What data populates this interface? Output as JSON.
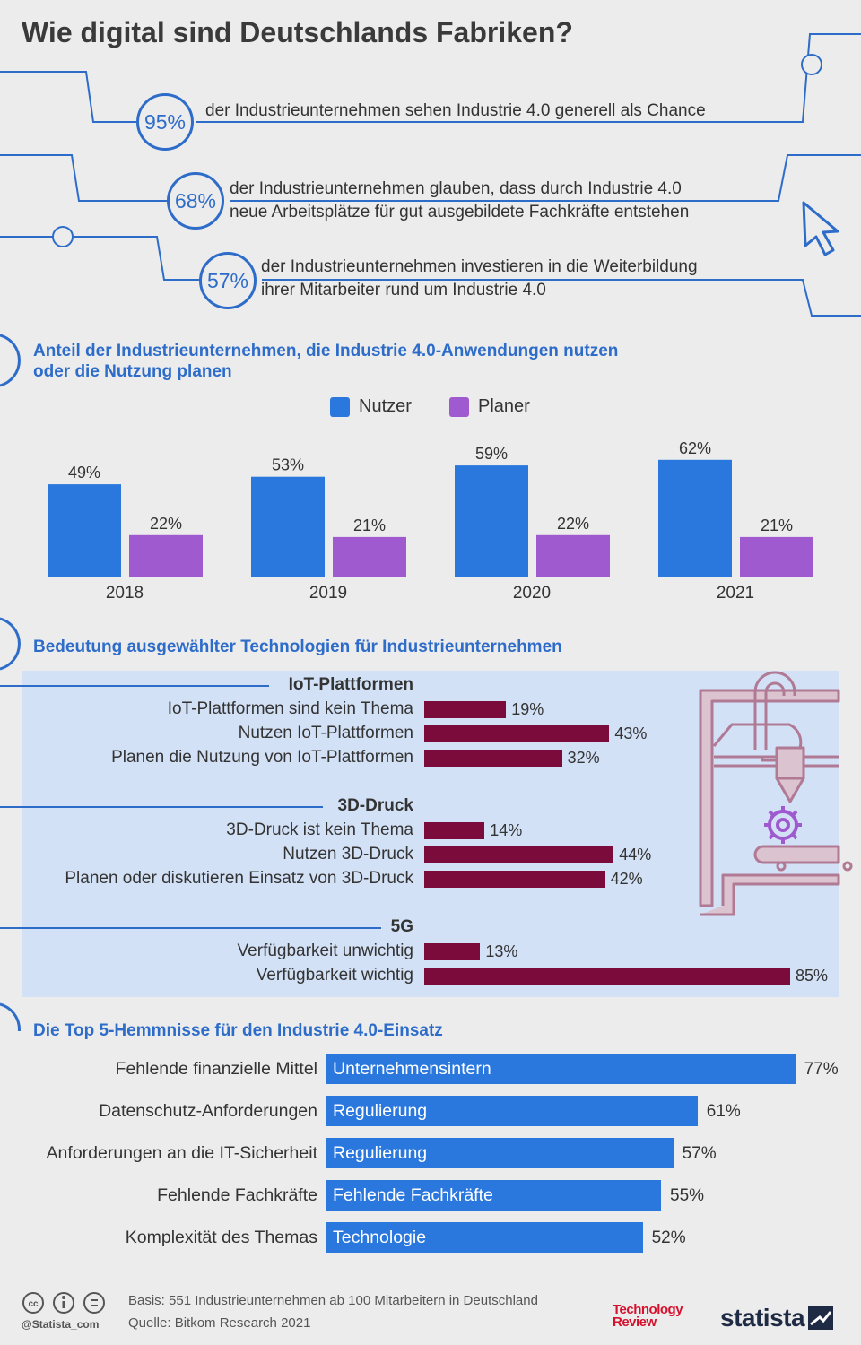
{
  "title": "Wie digital sind Deutschlands Fabriken?",
  "stats": [
    {
      "value": "95%",
      "lines": [
        "der Industrieunternehmen sehen Industrie 4.0 generell als Chance"
      ]
    },
    {
      "value": "68%",
      "lines": [
        "der Industrieunternehmen glauben, dass durch Industrie 4.0",
        "neue Arbeitsplätze für gut ausgebildete Fachkräfte entstehen"
      ]
    },
    {
      "value": "57%",
      "lines": [
        "der Industrieunternehmen investieren in die Weiterbildung",
        "ihrer Mitarbeiter rund um Industrie 4.0"
      ]
    }
  ],
  "colors": {
    "blue": "#2a78de",
    "purple": "#a05ad0",
    "maroon": "#7b0b3a",
    "accent": "#2e6cc9",
    "panel": "#d3e1f6",
    "background": "#ececec"
  },
  "chart_data": [
    {
      "type": "bar",
      "title": "Anteil der Industrieunternehmen, die Industrie 4.0-Anwendungen nutzen oder die Nutzung planen",
      "categories": [
        "2018",
        "2019",
        "2020",
        "2021"
      ],
      "series": [
        {
          "name": "Nutzer",
          "values": [
            49,
            53,
            59,
            62
          ],
          "labels": [
            "49%",
            "53%",
            "59%",
            "62%"
          ]
        },
        {
          "name": "Planer",
          "values": [
            22,
            21,
            22,
            21
          ],
          "labels": [
            "22%",
            "21%",
            "22%",
            "21%"
          ]
        }
      ],
      "unit": "%"
    },
    {
      "type": "bar",
      "orientation": "horizontal",
      "title": "Bedeutung ausgewählter Technologien für Industrieunternehmen",
      "groups": [
        {
          "name": "IoT-Plattformen",
          "items": [
            {
              "label": "IoT-Plattformen sind kein Thema",
              "value": 19,
              "text": "19%"
            },
            {
              "label": "Nutzen IoT-Plattformen",
              "value": 43,
              "text": "43%"
            },
            {
              "label": "Planen die Nutzung von IoT-Plattformen",
              "value": 32,
              "text": "32%"
            }
          ]
        },
        {
          "name": "3D-Druck",
          "items": [
            {
              "label": "3D-Druck ist kein Thema",
              "value": 14,
              "text": "14%"
            },
            {
              "label": "Nutzen 3D-Druck",
              "value": 44,
              "text": "44%"
            },
            {
              "label": "Planen oder diskutieren Einsatz von 3D-Druck",
              "value": 42,
              "text": "42%"
            }
          ]
        },
        {
          "name": "5G",
          "items": [
            {
              "label": "Verfügbarkeit unwichtig",
              "value": 13,
              "text": "13%"
            },
            {
              "label": "Verfügbarkeit wichtig",
              "value": 85,
              "text": "85%"
            }
          ]
        }
      ],
      "unit": "%"
    },
    {
      "type": "bar",
      "orientation": "horizontal",
      "title": "Die Top 5-Hemmnisse für den Industrie 4.0-Einsatz",
      "items": [
        {
          "label": "Fehlende finanzielle Mittel",
          "category": "Unternehmensintern",
          "value": 77,
          "text": "77%"
        },
        {
          "label": "Datenschutz-Anforderungen",
          "category": "Regulierung",
          "value": 61,
          "text": "61%"
        },
        {
          "label": "Anforderungen an die IT-Sicherheit",
          "category": "Regulierung",
          "value": 57,
          "text": "57%"
        },
        {
          "label": "Fehlende Fachkräfte",
          "category": "Fehlende Fachkräfte",
          "value": 55,
          "text": "55%"
        },
        {
          "label": "Komplexität des Themas",
          "category": "Technologie",
          "value": 52,
          "text": "52%"
        }
      ],
      "unit": "%"
    }
  ],
  "footer": {
    "handle": "@Statista_com",
    "basis": "Basis: 551 Industrieunternehmen ab 100 Mitarbeitern in Deutschland",
    "source": "Quelle: Bitkom Research 2021",
    "partner_logo_line1": "Technology",
    "partner_logo_line2": "Review",
    "brand": "statista"
  }
}
